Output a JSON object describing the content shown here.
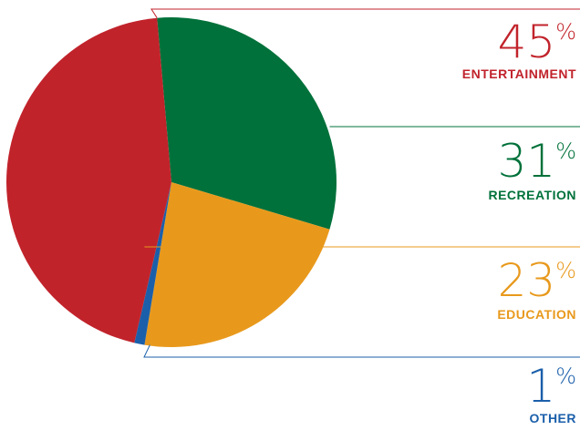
{
  "chart_data": {
    "type": "pie",
    "title": "",
    "slices": [
      {
        "label": "ENTERTAINMENT",
        "value": 45,
        "display": "45",
        "color": "#c1232b"
      },
      {
        "label": "RECREATION",
        "value": 31,
        "display": "31",
        "color": "#00713a"
      },
      {
        "label": "EDUCATION",
        "value": 23,
        "display": "23",
        "color": "#e8991c"
      },
      {
        "label": "OTHER",
        "value": 1,
        "display": "1",
        "color": "#1b5faa"
      }
    ],
    "percent_sign": "%",
    "legend_placement": "right"
  }
}
